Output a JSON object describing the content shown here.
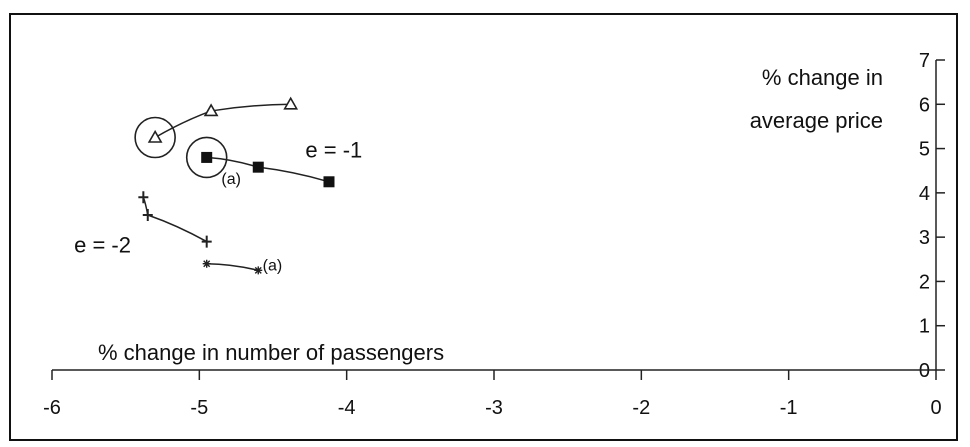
{
  "chart_data": {
    "type": "scatter",
    "xlabel": "% change in number of passengers",
    "ylabel": [
      "% change in",
      "average price"
    ],
    "xlim": [
      -6,
      0
    ],
    "ylim": [
      0,
      7
    ],
    "x_ticks": [
      "-6",
      "-5",
      "-4",
      "-3",
      "-2",
      "-1",
      "0"
    ],
    "y_ticks": [
      "0",
      "1",
      "2",
      "3",
      "4",
      "5",
      "6",
      "7"
    ],
    "grid": false,
    "series": [
      {
        "marker": "triangle-open",
        "points": [
          [
            -5.3,
            5.25
          ],
          [
            -4.92,
            5.85
          ],
          [
            -4.38,
            6.0
          ]
        ]
      },
      {
        "marker": "square-filled",
        "points": [
          [
            -4.95,
            4.8
          ],
          [
            -4.6,
            4.58
          ],
          [
            -4.12,
            4.25
          ]
        ]
      },
      {
        "marker": "cross",
        "points": [
          [
            -5.38,
            3.9
          ],
          [
            -5.35,
            3.5
          ],
          [
            -4.95,
            2.9
          ]
        ]
      },
      {
        "marker": "small-star",
        "points": [
          [
            -4.95,
            2.4
          ],
          [
            -4.6,
            2.25
          ]
        ]
      }
    ],
    "circled_points": [
      [
        -5.3,
        5.25
      ],
      [
        -4.95,
        4.8
      ]
    ],
    "annotations": [
      {
        "text": "e = -1",
        "x": -4.28,
        "y": 4.8,
        "size": "large"
      },
      {
        "text": "(a)",
        "x": -4.85,
        "y": 4.2,
        "size": "small"
      },
      {
        "text": "e = -2",
        "x": -5.85,
        "y": 2.65,
        "size": "large"
      },
      {
        "text": "(a)",
        "x": -4.57,
        "y": 2.25,
        "size": "small"
      }
    ],
    "colors": {
      "line": "#222222",
      "background": "#ffffff",
      "frame": "#111111"
    }
  }
}
